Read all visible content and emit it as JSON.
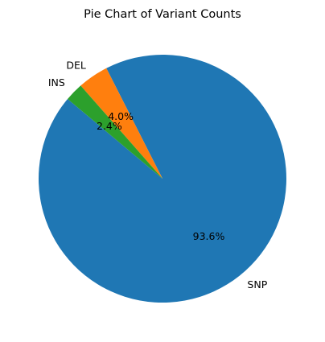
{
  "chart_data": {
    "type": "pie",
    "title": "Pie Chart of Variant Counts",
    "slices": [
      {
        "label": "SNP",
        "percent": 93.6,
        "display": "93.6%",
        "color": "#1f77b4"
      },
      {
        "label": "DEL",
        "percent": 4.0,
        "display": "4.0%",
        "color": "#ff7f0e"
      },
      {
        "label": "INS",
        "percent": 2.4,
        "display": "2.4%",
        "color": "#2ca02c"
      }
    ],
    "start_angle_deg": 140,
    "direction": "counterclockwise"
  }
}
